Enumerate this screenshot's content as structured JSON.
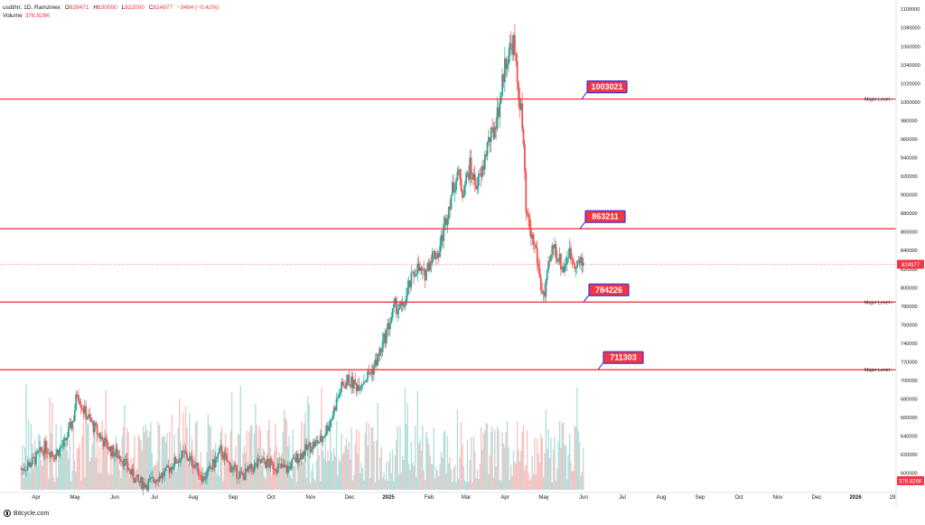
{
  "header": {
    "symbol": "usdt/irr, 1D, Ramzinex",
    "ohlc": [
      {
        "key": "O",
        "value": "828471"
      },
      {
        "key": "H",
        "value": "830000"
      },
      {
        "key": "L",
        "value": "822000"
      },
      {
        "key": "C",
        "value": "824977"
      }
    ],
    "change": "−3494 (−0.42%)",
    "volume_label": "Volume",
    "volume_value": "376.826K"
  },
  "footer": {
    "brand": "Bitcycle.com"
  },
  "colors": {
    "up": "#26a69a",
    "down": "#ef5350",
    "level_line": "#f23645",
    "label_bg": "#f23645",
    "label_border": "#3d2fd6",
    "price_tag": "#f23645",
    "text": "#131722",
    "grid": "#f0f3fa"
  },
  "chart_data": {
    "type": "candlestick",
    "y_axis_ticks": [
      1100000,
      1080000,
      1060000,
      1040000,
      1020000,
      1000000,
      980000,
      960000,
      940000,
      920000,
      900000,
      880000,
      860000,
      840000,
      820000,
      800000,
      780000,
      760000,
      740000,
      720000,
      700000,
      680000,
      660000,
      640000,
      620000,
      600000
    ],
    "ylim": [
      582000,
      1100000
    ],
    "x_axis_labels": [
      "Apr",
      "May",
      "Jun",
      "Jul",
      "Aug",
      "Sep",
      "Oct",
      "Nov",
      "Dec",
      "2025",
      "Feb",
      "Mar",
      "Apr",
      "May",
      "Jun",
      "Jul",
      "Aug",
      "Sep",
      "Oct",
      "Nov",
      "Dec",
      "2026",
      "29"
    ],
    "last_price": "824977",
    "volume_tag": "376.826K",
    "levels": [
      {
        "value": 1003021,
        "label": "1003021",
        "axis_note": "Major Level"
      },
      {
        "value": 863211,
        "label": "863211",
        "axis_note": ""
      },
      {
        "value": 784226,
        "label": "784226",
        "axis_note": "Major Level"
      },
      {
        "value": 711303,
        "label": "711303",
        "axis_note": "Major Level"
      }
    ],
    "price_path": [
      [
        "2024-03-01",
        604000
      ],
      [
        "2024-03-10",
        612000
      ],
      [
        "2024-03-20",
        628000
      ],
      [
        "2024-03-28",
        620000
      ],
      [
        "2024-04-05",
        632000
      ],
      [
        "2024-04-12",
        660000
      ],
      [
        "2024-04-15",
        688000
      ],
      [
        "2024-04-20",
        668000
      ],
      [
        "2024-04-28",
        650000
      ],
      [
        "2024-05-05",
        636000
      ],
      [
        "2024-05-12",
        624000
      ],
      [
        "2024-05-20",
        618000
      ],
      [
        "2024-05-28",
        600000
      ],
      [
        "2024-06-03",
        590000
      ],
      [
        "2024-06-10",
        588000
      ],
      [
        "2024-06-18",
        596000
      ],
      [
        "2024-06-25",
        600000
      ],
      [
        "2024-07-02",
        612000
      ],
      [
        "2024-07-10",
        620000
      ],
      [
        "2024-07-18",
        610000
      ],
      [
        "2024-07-25",
        594000
      ],
      [
        "2024-08-01",
        606000
      ],
      [
        "2024-08-08",
        624000
      ],
      [
        "2024-08-15",
        608000
      ],
      [
        "2024-08-25",
        596000
      ],
      [
        "2024-09-03",
        606000
      ],
      [
        "2024-09-10",
        612000
      ],
      [
        "2024-09-20",
        608000
      ],
      [
        "2024-09-30",
        604000
      ],
      [
        "2024-10-08",
        616000
      ],
      [
        "2024-10-18",
        628000
      ],
      [
        "2024-10-28",
        636000
      ],
      [
        "2024-11-05",
        660000
      ],
      [
        "2024-11-12",
        690000
      ],
      [
        "2024-11-18",
        700000
      ],
      [
        "2024-11-25",
        694000
      ],
      [
        "2024-12-02",
        702000
      ],
      [
        "2024-12-08",
        712000
      ],
      [
        "2024-12-14",
        730000
      ],
      [
        "2024-12-20",
        756000
      ],
      [
        "2024-12-26",
        780000
      ],
      [
        "2025-01-01",
        776000
      ],
      [
        "2025-01-06",
        800000
      ],
      [
        "2025-01-12",
        822000
      ],
      [
        "2025-01-18",
        812000
      ],
      [
        "2025-01-24",
        834000
      ],
      [
        "2025-01-30",
        838000
      ],
      [
        "2025-02-04",
        870000
      ],
      [
        "2025-02-09",
        900000
      ],
      [
        "2025-02-14",
        924000
      ],
      [
        "2025-02-18",
        904000
      ],
      [
        "2025-02-24",
        930000
      ],
      [
        "2025-02-28",
        912000
      ],
      [
        "2025-03-05",
        918000
      ],
      [
        "2025-03-10",
        954000
      ],
      [
        "2025-03-15",
        968000
      ],
      [
        "2025-03-20",
        1000000
      ],
      [
        "2025-03-24",
        1040000
      ],
      [
        "2025-03-28",
        1058000
      ],
      [
        "2025-03-31",
        1064000
      ],
      [
        "2025-04-03",
        1020000
      ],
      [
        "2025-04-06",
        990000
      ],
      [
        "2025-04-08",
        950000
      ],
      [
        "2025-04-10",
        880000
      ],
      [
        "2025-04-14",
        856000
      ],
      [
        "2025-04-18",
        840000
      ],
      [
        "2025-04-22",
        800000
      ],
      [
        "2025-04-25",
        790000
      ],
      [
        "2025-04-28",
        820000
      ],
      [
        "2025-05-02",
        846000
      ],
      [
        "2025-05-06",
        832000
      ],
      [
        "2025-05-10",
        820000
      ],
      [
        "2025-05-14",
        838000
      ],
      [
        "2025-05-18",
        830000
      ],
      [
        "2025-05-22",
        826000
      ],
      [
        "2025-05-26",
        824977
      ]
    ]
  }
}
